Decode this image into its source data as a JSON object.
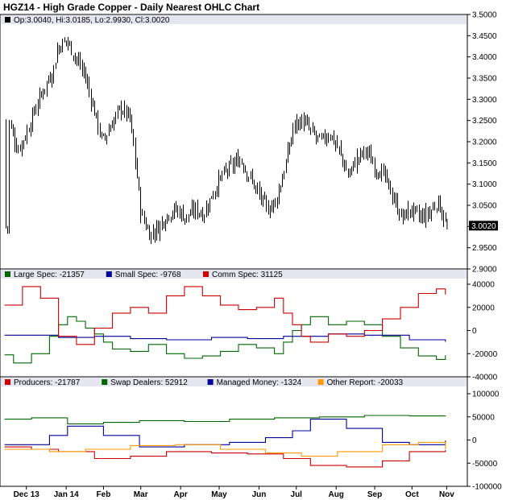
{
  "chart": {
    "title": "HGZ14 - High Grade Copper - Daily Nearest OHLC Chart",
    "ohlc_legend": "Op:3.0040, Hi:3.0185, Lo:2.9930, Cl:3.0020",
    "last_price_label": "3.0020",
    "months": [
      "Dec 13",
      "Jan 14",
      "Feb",
      "Mar",
      "Apr",
      "May",
      "Jun",
      "Jul",
      "Aug",
      "Sep",
      "Oct",
      "Nov"
    ],
    "price_ticks": [
      "3.5000",
      "3.4500",
      "3.4000",
      "3.3500",
      "3.3000",
      "3.2500",
      "3.2000",
      "3.1500",
      "3.1000",
      "3.0500",
      "3.0000",
      "2.9500",
      "2.9000"
    ],
    "cot1_ticks": [
      "40000",
      "20000",
      "0",
      "-20000",
      "-40000"
    ],
    "cot2_ticks": [
      "100000",
      "50000",
      "0",
      "-50000",
      "-100000"
    ],
    "colors": {
      "large_spec": "#006600",
      "small_spec": "#000099",
      "comm_spec": "#cc0000",
      "producers": "#cc0000",
      "swap_dealers": "#006600",
      "managed_money": "#000099",
      "other_report": "#ff9900",
      "title_band": "#e6e6f0"
    },
    "cot1_legend": [
      {
        "label": "Large Spec: -21357",
        "color": "#006600"
      },
      {
        "label": "Small Spec: -9768",
        "color": "#000099"
      },
      {
        "label": "Comm Spec: 31125",
        "color": "#cc0000"
      }
    ],
    "cot2_legend": [
      {
        "label": "Producers: -21787",
        "color": "#cc0000"
      },
      {
        "label": "Swap Dealers: 52912",
        "color": "#006600"
      },
      {
        "label": "Managed Money: -1324",
        "color": "#000099"
      },
      {
        "label": "Other Report: -20033",
        "color": "#ff9900"
      }
    ]
  },
  "chart_data": [
    {
      "type": "ohlc",
      "title": "HGZ14 - High Grade Copper - Daily Nearest OHLC Chart",
      "ylim": [
        2.9,
        3.5
      ],
      "x_labels": [
        "Dec 13",
        "Jan 14",
        "Feb",
        "Mar",
        "Apr",
        "May",
        "Jun",
        "Jul",
        "Aug",
        "Sep",
        "Oct",
        "Nov"
      ],
      "anchors": [
        {
          "x": "2013-11-29",
          "close": 3.25
        },
        {
          "x": "2013-12-06",
          "close": 3.18
        },
        {
          "x": "2013-12-13",
          "close": 3.22
        },
        {
          "x": "2013-12-20",
          "close": 3.28
        },
        {
          "x": "2013-12-27",
          "close": 3.33
        },
        {
          "x": "2014-01-03",
          "close": 3.37
        },
        {
          "x": "2014-01-06",
          "close": 3.42
        },
        {
          "x": "2014-01-13",
          "close": 3.44
        },
        {
          "x": "2014-01-20",
          "close": 3.4
        },
        {
          "x": "2014-01-27",
          "close": 3.36
        },
        {
          "x": "2014-02-03",
          "close": 3.28
        },
        {
          "x": "2014-02-10",
          "close": 3.2
        },
        {
          "x": "2014-02-17",
          "close": 3.24
        },
        {
          "x": "2014-02-24",
          "close": 3.28
        },
        {
          "x": "2014-03-03",
          "close": 3.26
        },
        {
          "x": "2014-03-07",
          "close": 3.17
        },
        {
          "x": "2014-03-12",
          "close": 3.03
        },
        {
          "x": "2014-03-19",
          "close": 2.98
        },
        {
          "x": "2014-03-26",
          "close": 3.0
        },
        {
          "x": "2014-04-02",
          "close": 3.03
        },
        {
          "x": "2014-04-09",
          "close": 3.04
        },
        {
          "x": "2014-04-16",
          "close": 3.02
        },
        {
          "x": "2014-04-23",
          "close": 3.04
        },
        {
          "x": "2014-04-30",
          "close": 3.03
        },
        {
          "x": "2014-05-07",
          "close": 3.08
        },
        {
          "x": "2014-05-14",
          "close": 3.12
        },
        {
          "x": "2014-05-21",
          "close": 3.14
        },
        {
          "x": "2014-05-28",
          "close": 3.16
        },
        {
          "x": "2014-06-04",
          "close": 3.12
        },
        {
          "x": "2014-06-11",
          "close": 3.08
        },
        {
          "x": "2014-06-18",
          "close": 3.04
        },
        {
          "x": "2014-06-25",
          "close": 3.06
        },
        {
          "x": "2014-07-02",
          "close": 3.14
        },
        {
          "x": "2014-07-09",
          "close": 3.24
        },
        {
          "x": "2014-07-16",
          "close": 3.25
        },
        {
          "x": "2014-07-23",
          "close": 3.22
        },
        {
          "x": "2014-07-30",
          "close": 3.2
        },
        {
          "x": "2014-08-06",
          "close": 3.22
        },
        {
          "x": "2014-08-13",
          "close": 3.18
        },
        {
          "x": "2014-08-20",
          "close": 3.12
        },
        {
          "x": "2014-08-27",
          "close": 3.16
        },
        {
          "x": "2014-09-03",
          "close": 3.18
        },
        {
          "x": "2014-09-10",
          "close": 3.14
        },
        {
          "x": "2014-09-17",
          "close": 3.12
        },
        {
          "x": "2014-09-24",
          "close": 3.07
        },
        {
          "x": "2014-10-01",
          "close": 3.02
        },
        {
          "x": "2014-10-08",
          "close": 3.04
        },
        {
          "x": "2014-10-15",
          "close": 3.02
        },
        {
          "x": "2014-10-22",
          "close": 3.03
        },
        {
          "x": "2014-10-29",
          "close": 3.06
        },
        {
          "x": "2014-11-05",
          "close": 3.0
        }
      ],
      "last": {
        "open": 3.004,
        "high": 3.0185,
        "low": 2.993,
        "close": 3.002
      }
    },
    {
      "type": "line",
      "step": true,
      "ylim": [
        -40000,
        40000
      ],
      "series": [
        {
          "name": "Large Spec",
          "color": "#006600",
          "points": [
            [
              "2013-11-26",
              -21000
            ],
            [
              "2013-12-03",
              -28000
            ],
            [
              "2013-12-17",
              -20000
            ],
            [
              "2013-12-31",
              -5000
            ],
            [
              "2014-01-07",
              5000
            ],
            [
              "2014-01-14",
              12000
            ],
            [
              "2014-01-21",
              8000
            ],
            [
              "2014-01-28",
              2000
            ],
            [
              "2014-02-04",
              -3000
            ],
            [
              "2014-02-11",
              -10000
            ],
            [
              "2014-02-18",
              -16000
            ],
            [
              "2014-03-04",
              -18000
            ],
            [
              "2014-03-18",
              -12000
            ],
            [
              "2014-04-01",
              -20000
            ],
            [
              "2014-04-15",
              -24000
            ],
            [
              "2014-04-29",
              -22000
            ],
            [
              "2014-05-13",
              -18000
            ],
            [
              "2014-05-27",
              -12000
            ],
            [
              "2014-06-10",
              -15000
            ],
            [
              "2014-06-24",
              -20000
            ],
            [
              "2014-07-01",
              -10000
            ],
            [
              "2014-07-08",
              0
            ],
            [
              "2014-07-15",
              5000
            ],
            [
              "2014-07-22",
              12000
            ],
            [
              "2014-08-05",
              5000
            ],
            [
              "2014-08-19",
              8000
            ],
            [
              "2014-09-02",
              5000
            ],
            [
              "2014-09-16",
              -5000
            ],
            [
              "2014-09-30",
              -15000
            ],
            [
              "2014-10-14",
              -22000
            ],
            [
              "2014-10-28",
              -25000
            ],
            [
              "2014-11-04",
              -21357
            ]
          ]
        },
        {
          "name": "Small Spec",
          "color": "#000099",
          "points": [
            [
              "2013-11-26",
              -4000
            ],
            [
              "2014-01-07",
              -6000
            ],
            [
              "2014-02-04",
              -5000
            ],
            [
              "2014-03-04",
              -7000
            ],
            [
              "2014-04-01",
              -8000
            ],
            [
              "2014-05-06",
              -6000
            ],
            [
              "2014-06-03",
              -7000
            ],
            [
              "2014-07-01",
              -5000
            ],
            [
              "2014-08-05",
              -3000
            ],
            [
              "2014-09-02",
              -4000
            ],
            [
              "2014-10-07",
              -8000
            ],
            [
              "2014-11-04",
              -9768
            ]
          ]
        },
        {
          "name": "Comm Spec",
          "color": "#cc0000",
          "points": [
            [
              "2013-11-26",
              22000
            ],
            [
              "2013-12-10",
              38000
            ],
            [
              "2013-12-24",
              28000
            ],
            [
              "2014-01-07",
              -5000
            ],
            [
              "2014-01-21",
              -12000
            ],
            [
              "2014-02-04",
              2000
            ],
            [
              "2014-02-18",
              15000
            ],
            [
              "2014-03-04",
              20000
            ],
            [
              "2014-03-18",
              15000
            ],
            [
              "2014-04-01",
              30000
            ],
            [
              "2014-04-15",
              38000
            ],
            [
              "2014-04-29",
              30000
            ],
            [
              "2014-05-13",
              22000
            ],
            [
              "2014-05-27",
              18000
            ],
            [
              "2014-06-10",
              20000
            ],
            [
              "2014-06-24",
              28000
            ],
            [
              "2014-07-01",
              15000
            ],
            [
              "2014-07-08",
              5000
            ],
            [
              "2014-07-15",
              -5000
            ],
            [
              "2014-07-22",
              -10000
            ],
            [
              "2014-08-05",
              -3000
            ],
            [
              "2014-08-19",
              -5000
            ],
            [
              "2014-09-02",
              0
            ],
            [
              "2014-09-16",
              10000
            ],
            [
              "2014-09-30",
              20000
            ],
            [
              "2014-10-14",
              32000
            ],
            [
              "2014-10-28",
              36000
            ],
            [
              "2014-11-04",
              31125
            ]
          ]
        }
      ]
    },
    {
      "type": "line",
      "step": true,
      "ylim": [
        -100000,
        100000
      ],
      "series": [
        {
          "name": "Producers",
          "color": "#cc0000",
          "points": [
            [
              "2013-11-26",
              -15000
            ],
            [
              "2013-12-17",
              -20000
            ],
            [
              "2014-01-07",
              -25000
            ],
            [
              "2014-02-04",
              -40000
            ],
            [
              "2014-03-04",
              -35000
            ],
            [
              "2014-04-01",
              -25000
            ],
            [
              "2014-05-06",
              -28000
            ],
            [
              "2014-06-03",
              -30000
            ],
            [
              "2014-07-01",
              -40000
            ],
            [
              "2014-07-22",
              -55000
            ],
            [
              "2014-08-19",
              -58000
            ],
            [
              "2014-09-16",
              -45000
            ],
            [
              "2014-10-07",
              -25000
            ],
            [
              "2014-11-04",
              -21787
            ]
          ]
        },
        {
          "name": "Swap Dealers",
          "color": "#006600",
          "points": [
            [
              "2013-11-26",
              45000
            ],
            [
              "2013-12-17",
              48000
            ],
            [
              "2014-01-14",
              35000
            ],
            [
              "2014-02-11",
              38000
            ],
            [
              "2014-03-11",
              42000
            ],
            [
              "2014-04-15",
              40000
            ],
            [
              "2014-05-20",
              45000
            ],
            [
              "2014-06-24",
              48000
            ],
            [
              "2014-07-29",
              50000
            ],
            [
              "2014-09-02",
              53000
            ],
            [
              "2014-10-07",
              52000
            ],
            [
              "2014-11-04",
              52912
            ]
          ]
        },
        {
          "name": "Managed Money",
          "color": "#000099",
          "points": [
            [
              "2013-11-26",
              -10000
            ],
            [
              "2013-12-31",
              10000
            ],
            [
              "2014-01-14",
              30000
            ],
            [
              "2014-02-11",
              10000
            ],
            [
              "2014-03-11",
              -15000
            ],
            [
              "2014-04-15",
              -10000
            ],
            [
              "2014-05-20",
              -5000
            ],
            [
              "2014-06-17",
              5000
            ],
            [
              "2014-07-08",
              20000
            ],
            [
              "2014-07-22",
              45000
            ],
            [
              "2014-08-19",
              25000
            ],
            [
              "2014-09-16",
              -5000
            ],
            [
              "2014-10-07",
              -10000
            ],
            [
              "2014-11-04",
              -1324
            ]
          ]
        },
        {
          "name": "Other Report",
          "color": "#ff9900",
          "points": [
            [
              "2013-11-26",
              -20000
            ],
            [
              "2013-12-31",
              -25000
            ],
            [
              "2014-01-28",
              -20000
            ],
            [
              "2014-03-04",
              -12000
            ],
            [
              "2014-04-08",
              -10000
            ],
            [
              "2014-05-13",
              -20000
            ],
            [
              "2014-06-17",
              -28000
            ],
            [
              "2014-07-15",
              -35000
            ],
            [
              "2014-08-12",
              -25000
            ],
            [
              "2014-09-16",
              -10000
            ],
            [
              "2014-10-14",
              -5000
            ],
            [
              "2014-11-04",
              -20033
            ]
          ]
        }
      ]
    }
  ]
}
